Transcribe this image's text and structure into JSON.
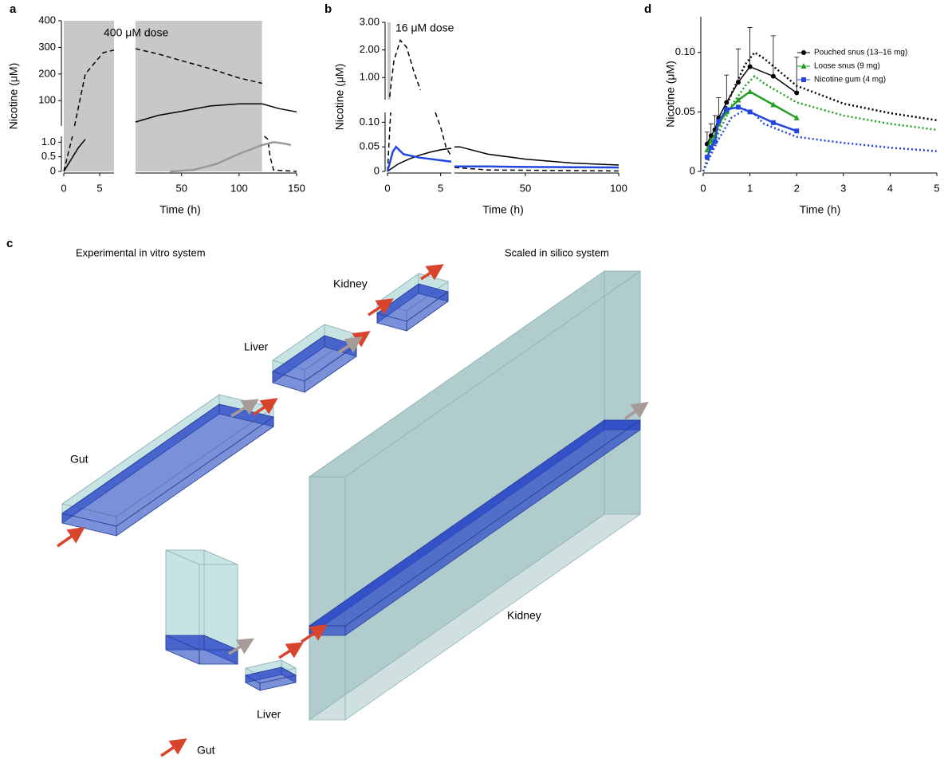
{
  "chart_data": [
    {
      "type": "line",
      "panel_label": "a",
      "y_label": "Nicotine (μM)",
      "x_label": "Time (h)",
      "annotation": "400 μM dose",
      "shade": {
        "x": [
          0,
          120
        ]
      },
      "xaxes": [
        {
          "xlim": [
            0,
            7
          ],
          "xticks": [
            0,
            5
          ]
        },
        {
          "xlim": [
            10,
            150
          ],
          "xticks": [
            50,
            100,
            150
          ]
        }
      ],
      "yaxes": [
        {
          "ylim": [
            0,
            1.2
          ],
          "yticks": [
            0,
            0.5,
            {
              "value": 1,
              "label": "1.0"
            }
          ]
        },
        {
          "ylim": [
            5,
            400
          ],
          "yticks": [
            100,
            200,
            300,
            400
          ]
        }
      ],
      "series": [
        {
          "color": "#000000",
          "dash": "dashed",
          "xaxis": 0,
          "yaxis": 0,
          "x": [
            0,
            1.2
          ],
          "values": [
            0,
            1.2
          ]
        },
        {
          "color": "#000000",
          "dash": "dashed",
          "xaxis": 0,
          "yaxis": 1,
          "x": [
            1.5,
            3,
            5.5,
            7
          ],
          "values": [
            5,
            200,
            280,
            290
          ]
        },
        {
          "color": "#000000",
          "dash": "dashed",
          "xaxis": 1,
          "yaxis": 1,
          "x": [
            10,
            30,
            50,
            75,
            100,
            120
          ],
          "values": [
            295,
            275,
            250,
            220,
            185,
            165
          ]
        },
        {
          "color": "#000000",
          "dash": "dashed",
          "xaxis": 1,
          "yaxis": 0,
          "x": [
            122,
            125,
            127,
            130,
            150
          ],
          "values": [
            1.2,
            1.1,
            0.5,
            0.05,
            0
          ]
        },
        {
          "color": "#000000",
          "dash": "solid",
          "xaxis": 1,
          "yaxis": 1,
          "x": [
            10,
            30,
            50,
            75,
            100,
            120,
            135,
            150
          ],
          "values": [
            20,
            45,
            60,
            80,
            88,
            88,
            70,
            58
          ]
        },
        {
          "color": "#000000",
          "dash": "solid",
          "xaxis": 0,
          "yaxis": 0,
          "x": [
            0,
            1,
            2,
            3
          ],
          "values": [
            0,
            0.4,
            0.8,
            1.1
          ]
        },
        {
          "color": "#999999",
          "dash": "solid",
          "xaxis": 1,
          "yaxis": 0,
          "x": [
            40,
            60,
            80,
            100,
            120,
            130,
            140,
            145
          ],
          "values": [
            0,
            0.05,
            0.25,
            0.6,
            0.9,
            1.0,
            0.95,
            0.9
          ]
        }
      ]
    },
    {
      "type": "line",
      "panel_label": "b",
      "y_label": "Nicotine (μM)",
      "x_label": "Time (h)",
      "annotation": "16 μM dose",
      "shade": {
        "x": [
          0,
          0.3
        ],
        "yaxis": 1
      },
      "xaxes": [
        {
          "xlim": [
            0,
            6
          ],
          "xticks": [
            0,
            5
          ]
        },
        {
          "xlim": [
            12,
            100
          ],
          "xticks": [
            50,
            100
          ]
        }
      ],
      "yaxes": [
        {
          "ylim": [
            0,
            0.12
          ],
          "yticks": [
            0,
            {
              "value": 0.05,
              "label": "0.05"
            },
            {
              "value": 0.1,
              "label": "0.10"
            }
          ]
        },
        {
          "ylim": [
            0.2,
            3
          ],
          "yticks": [
            {
              "value": 1,
              "label": "1.00"
            },
            {
              "value": 2,
              "label": "2.00"
            },
            {
              "value": 3,
              "label": "3.00"
            }
          ]
        }
      ],
      "series": [
        {
          "color": "#000000",
          "dash": "dashed",
          "xaxis": 0,
          "yaxis": 1,
          "x": [
            0.2,
            0.6,
            1.2,
            1.8,
            2.5,
            3.1
          ],
          "values": [
            0.3,
            1.6,
            2.35,
            2.1,
            1.2,
            0.55
          ]
        },
        {
          "color": "#000000",
          "dash": "dashed",
          "xaxis": 0,
          "yaxis": 0,
          "x": [
            0,
            0.3
          ],
          "values": [
            0,
            0.12
          ]
        },
        {
          "color": "#000000",
          "dash": "dashed",
          "xaxis": 0,
          "yaxis": 0,
          "x": [
            4.5,
            5,
            5.5,
            6
          ],
          "values": [
            0.12,
            0.09,
            0.05,
            0.03
          ]
        },
        {
          "color": "#000000",
          "dash": "dashed",
          "xaxis": 1,
          "yaxis": 0,
          "x": [
            12,
            30,
            100
          ],
          "values": [
            0.008,
            0.003,
            0.001
          ]
        },
        {
          "color": "#000000",
          "dash": "solid",
          "xaxis": 0,
          "yaxis": 0,
          "x": [
            0,
            1,
            2,
            3,
            4,
            5,
            6
          ],
          "values": [
            0,
            0.015,
            0.025,
            0.033,
            0.039,
            0.044,
            0.047
          ]
        },
        {
          "color": "#000000",
          "dash": "solid",
          "xaxis": 1,
          "yaxis": 0,
          "x": [
            12,
            15,
            20,
            30,
            50,
            75,
            100
          ],
          "values": [
            0.05,
            0.05,
            0.045,
            0.035,
            0.025,
            0.017,
            0.013
          ]
        },
        {
          "color": "#2346e0",
          "dash": "solid",
          "xaxis": 0,
          "yaxis": 0,
          "x": [
            0,
            0.5,
            0.8,
            1.5,
            3,
            6
          ],
          "values": [
            0,
            0.04,
            0.05,
            0.035,
            0.028,
            0.02
          ]
        },
        {
          "color": "#2346e0",
          "dash": "solid",
          "xaxis": 1,
          "yaxis": 0,
          "x": [
            12,
            30,
            50,
            100
          ],
          "values": [
            0.01,
            0.01,
            0.009,
            0.008
          ]
        }
      ]
    },
    {
      "type": "line",
      "panel_label": "d",
      "y_label": "Nicotine (μM)",
      "x_label": "Time (h)",
      "xaxes": [
        {
          "xlim": [
            0,
            5
          ],
          "xticks": [
            0,
            1,
            2,
            3,
            4,
            5
          ]
        }
      ],
      "yaxes": [
        {
          "ylim": [
            0,
            0.13
          ],
          "yticks": [
            0,
            {
              "value": 0.05,
              "label": "0.05"
            },
            {
              "value": 0.1,
              "label": "0.10"
            }
          ]
        }
      ],
      "series": [
        {
          "color": "#000000",
          "dash": "dotted",
          "xaxis": 0,
          "yaxis": 0,
          "x": [
            0,
            0.3,
            0.6,
            0.9,
            1.1,
            1.3,
            2,
            3,
            4,
            5
          ],
          "values": [
            0,
            0.035,
            0.065,
            0.09,
            0.1,
            0.095,
            0.072,
            0.057,
            0.049,
            0.043
          ]
        },
        {
          "color": "#22a022",
          "dash": "dotted",
          "xaxis": 0,
          "yaxis": 0,
          "x": [
            0,
            0.3,
            0.6,
            0.9,
            1.1,
            1.3,
            2,
            3,
            4,
            5
          ],
          "values": [
            0,
            0.03,
            0.055,
            0.072,
            0.08,
            0.074,
            0.058,
            0.047,
            0.04,
            0.035
          ]
        },
        {
          "color": "#2346e0",
          "dash": "dotted",
          "xaxis": 0,
          "yaxis": 0,
          "x": [
            0,
            0.3,
            0.6,
            0.9,
            1.1,
            1.3,
            2,
            3,
            4,
            5
          ],
          "values": [
            0,
            0.025,
            0.045,
            0.052,
            0.048,
            0.04,
            0.029,
            0.024,
            0.02,
            0.017
          ]
        },
        {
          "name": "Pouched snus (13–16 mg)",
          "color": "#000000",
          "dash": "solid",
          "marker": "circle",
          "xaxis": 0,
          "yaxis": 0,
          "x": [
            0.083,
            0.167,
            0.25,
            0.33,
            0.5,
            0.75,
            1,
            1.5,
            2
          ],
          "values": [
            0.023,
            0.03,
            0.035,
            0.045,
            0.058,
            0.075,
            0.088,
            0.08,
            0.066
          ],
          "errors": [
            0.01,
            0.01,
            0.012,
            0.017,
            0.023,
            0.028,
            0.033,
            0.034,
            0.03
          ]
        },
        {
          "name": "Loose snus (9 mg)",
          "color": "#22a022",
          "dash": "solid",
          "marker": "triangle",
          "xaxis": 0,
          "yaxis": 0,
          "x": [
            0.083,
            0.167,
            0.25,
            0.33,
            0.5,
            0.75,
            1,
            1.5,
            2
          ],
          "values": [
            0.018,
            0.026,
            0.03,
            0.04,
            0.05,
            0.06,
            0.067,
            0.056,
            0.045
          ]
        },
        {
          "name": "Nicotine gum (4 mg)",
          "color": "#2346e0",
          "dash": "solid",
          "marker": "square",
          "xaxis": 0,
          "yaxis": 0,
          "x": [
            0.083,
            0.167,
            0.25,
            0.33,
            0.5,
            0.75,
            1,
            1.5,
            2
          ],
          "values": [
            0.012,
            0.02,
            0.025,
            0.042,
            0.052,
            0.054,
            0.05,
            0.041,
            0.034
          ]
        }
      ]
    }
  ],
  "diagram": {
    "panel_label": "c",
    "left_title": "Experimental in vitro system",
    "right_title": "Scaled in silico system",
    "vitro": {
      "gut": "Gut",
      "liver": "Liver",
      "kidney": "Kidney"
    },
    "silico": {
      "gut": "Gut",
      "liver": "Liver",
      "kidney": "Kidney"
    }
  }
}
